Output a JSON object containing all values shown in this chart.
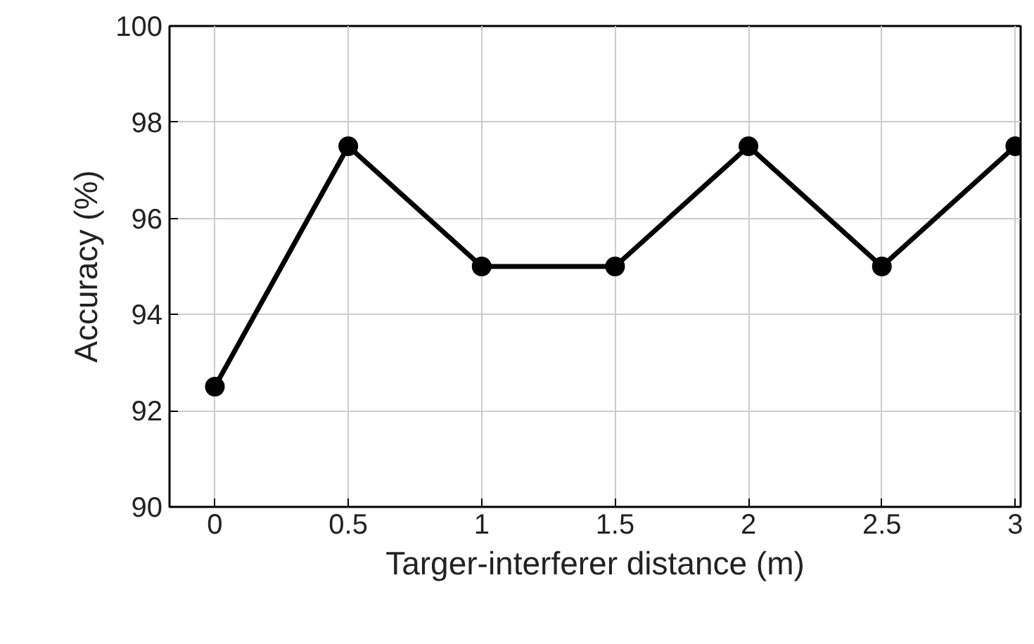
{
  "chart_data": {
    "type": "line",
    "xlabel": "Targer-interferer distance (m)",
    "ylabel": "Accuracy (%)",
    "x": [
      0,
      0.5,
      1,
      1.5,
      2,
      2.5,
      3
    ],
    "series": [
      {
        "color": "#000000",
        "values": [
          92.5,
          97.5,
          95,
          95,
          97.5,
          95,
          97.5
        ]
      }
    ],
    "xlim": [
      -0.17,
      3.02
    ],
    "xticks": [
      0,
      0.5,
      1,
      1.5,
      2,
      2.5,
      3
    ],
    "ylim": [
      90,
      100
    ],
    "yticks": [
      90,
      92,
      94,
      96,
      98,
      100
    ],
    "grid": true,
    "marker": "circle",
    "line_style": "solid"
  }
}
